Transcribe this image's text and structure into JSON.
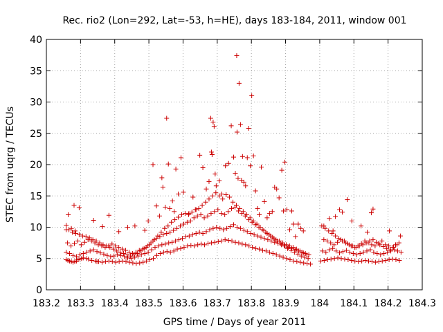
{
  "chart_data": {
    "type": "scatter",
    "title": "Rec. rio2 (Lon=292, Lat=-53, h=HE), days 183-184, 2011, window 001",
    "xlabel": "GPS time / Days of year 2011",
    "ylabel": "STEC from uqrg / TECUs",
    "xlim": [
      183.2,
      184.3
    ],
    "ylim": [
      0,
      40
    ],
    "xticks": [
      183.2,
      183.3,
      183.4,
      183.5,
      183.6,
      183.7,
      183.8,
      183.9,
      184.0,
      184.1,
      184.2,
      184.3
    ],
    "xtick_labels": [
      "183.2",
      "183.3",
      "183.4",
      "183.5",
      "183.6",
      "183.7",
      "183.8",
      "183.9",
      "184",
      "184.1",
      "184.2",
      "184.3"
    ],
    "yticks": [
      0,
      5,
      10,
      15,
      20,
      25,
      30,
      35,
      40
    ],
    "ytick_labels": [
      "0",
      "5",
      "10",
      "15",
      "20",
      "25",
      "30",
      "35",
      "40"
    ],
    "grid": true,
    "marker": "+",
    "color": "#cc0000",
    "series": [
      {
        "name": "STEC",
        "x": [
          183.258,
          183.263,
          183.268,
          183.273,
          183.278,
          183.283,
          183.288,
          183.293,
          183.298,
          183.303,
          183.308,
          183.318,
          183.323,
          183.333,
          183.343,
          183.348,
          183.353,
          183.363,
          183.373,
          183.383,
          183.393,
          183.403,
          183.413,
          183.423,
          183.433,
          183.443,
          183.453,
          183.463,
          183.473,
          183.483,
          183.493,
          183.503,
          183.513,
          183.523,
          183.533,
          183.543,
          183.553,
          183.563,
          183.573,
          183.583,
          183.593,
          183.603,
          183.613,
          183.623,
          183.633,
          183.643,
          183.653,
          183.663,
          183.673,
          183.683,
          183.693,
          183.703,
          183.713,
          183.723,
          183.733,
          183.743,
          183.753,
          183.763,
          183.773,
          183.783,
          183.793,
          183.803,
          183.813,
          183.823,
          183.833,
          183.843,
          183.853,
          183.863,
          183.873,
          183.883,
          183.893,
          183.903,
          183.913,
          183.923,
          183.933,
          183.943,
          183.953,
          183.963,
          183.973,
          184.003,
          184.013,
          184.023,
          184.033,
          184.043,
          184.053,
          184.063,
          184.073,
          184.083,
          184.093,
          184.103,
          184.113,
          184.123,
          184.133,
          184.143,
          184.153,
          184.163,
          184.173,
          184.183,
          184.193,
          184.203,
          184.213,
          184.223,
          184.233,
          183.258,
          183.268,
          183.278,
          183.288,
          183.298,
          183.308,
          183.318,
          183.328,
          183.338,
          183.348,
          183.358,
          183.368,
          183.378,
          183.388,
          183.398,
          183.408,
          183.418,
          183.428,
          183.438,
          183.448,
          183.458,
          183.468,
          183.478,
          183.488,
          183.498,
          183.508,
          183.518,
          183.528,
          183.538,
          183.548,
          183.558,
          183.568,
          183.578,
          183.588,
          183.598,
          183.608,
          183.618,
          183.628,
          183.638,
          183.648,
          183.658,
          183.668,
          183.678,
          183.688,
          183.698,
          183.708,
          183.718,
          183.728,
          183.738,
          183.748,
          183.758,
          183.768,
          183.778,
          183.788,
          183.798,
          183.808,
          183.818,
          183.828,
          183.838,
          183.848,
          183.858,
          183.868,
          183.878,
          183.888,
          183.898,
          183.908,
          183.918,
          183.928,
          183.938,
          183.948,
          183.958,
          183.968,
          184.008,
          184.018,
          184.028,
          184.038,
          184.048,
          184.058,
          184.068,
          184.078,
          184.088,
          184.098,
          184.108,
          184.118,
          184.128,
          184.138,
          184.148,
          184.158,
          184.168,
          184.178,
          184.188,
          184.198,
          184.208,
          184.218,
          184.228,
          184.238,
          183.262,
          183.272,
          183.282,
          183.292,
          183.302,
          183.312,
          183.322,
          183.332,
          183.342,
          183.352,
          183.362,
          183.372,
          183.382,
          183.392,
          183.402,
          183.412,
          183.422,
          183.432,
          183.442,
          183.452,
          183.462,
          183.472,
          183.482,
          183.492,
          183.502,
          183.512,
          183.522,
          183.532,
          183.542,
          183.552,
          183.562,
          183.572,
          183.582,
          183.592,
          183.602,
          183.612,
          183.622,
          183.632,
          183.642,
          183.652,
          183.662,
          183.672,
          183.682,
          183.692,
          183.702,
          183.712,
          183.722,
          183.732,
          183.742,
          183.752,
          183.762,
          183.772,
          183.782,
          183.792,
          183.802,
          183.812,
          183.822,
          183.832,
          183.842,
          183.852,
          183.862,
          183.872,
          183.882,
          183.892,
          183.902,
          183.912,
          183.922,
          183.932,
          183.942,
          183.952,
          183.962,
          184.012,
          184.022,
          184.032,
          184.042,
          184.052,
          184.062,
          184.072,
          184.082,
          184.092,
          184.102,
          184.112,
          184.122,
          184.132,
          184.142,
          184.152,
          184.162,
          184.172,
          184.182,
          184.192,
          184.202,
          184.212,
          184.222,
          184.232,
          183.258,
          183.266,
          183.276,
          183.286,
          183.296,
          183.306,
          183.316,
          183.326,
          183.336,
          183.346,
          183.356,
          183.366,
          183.376,
          183.386,
          183.396,
          183.406,
          183.416,
          183.426,
          183.436,
          183.446,
          183.456,
          183.466,
          183.476,
          183.486,
          183.496,
          183.506,
          183.516,
          183.526,
          183.536,
          183.546,
          183.556,
          183.566,
          183.576,
          183.586,
          183.596,
          183.606,
          183.616,
          183.626,
          183.636,
          183.646,
          183.656,
          183.666,
          183.676,
          183.686,
          183.696,
          183.706,
          183.716,
          183.726,
          183.736,
          183.746,
          183.756,
          183.766,
          183.776,
          183.786,
          183.796,
          183.806,
          183.816,
          183.826,
          183.836,
          183.846,
          183.856,
          183.866,
          183.876,
          183.886,
          183.896,
          183.906,
          183.916,
          183.926,
          183.936,
          183.946,
          183.956,
          183.966,
          184.006,
          184.016,
          184.026,
          184.036,
          184.046,
          184.056,
          184.066,
          184.076,
          184.086,
          184.096,
          184.106,
          184.116,
          184.126,
          184.136,
          184.146,
          184.156,
          184.166,
          184.176,
          184.186,
          184.196,
          184.206,
          184.216,
          184.226,
          184.236,
          183.258,
          183.264,
          183.273,
          183.281,
          183.284,
          183.296,
          183.338,
          183.364,
          183.383,
          183.412,
          183.438,
          183.459,
          183.488,
          183.498,
          183.512,
          183.522,
          183.531,
          183.538,
          183.541,
          183.548,
          183.552,
          183.557,
          183.561,
          183.569,
          183.574,
          183.579,
          183.586,
          183.594,
          183.601,
          183.617,
          183.629,
          183.638,
          183.649,
          183.658,
          183.668,
          183.676,
          183.681,
          183.683,
          183.685,
          183.688,
          183.691,
          183.694,
          183.697,
          183.706,
          183.713,
          183.724,
          183.733,
          183.741,
          183.748,
          183.753,
          183.757,
          183.758,
          183.761,
          183.764,
          183.768,
          183.771,
          183.774,
          183.778,
          183.783,
          183.788,
          183.792,
          183.797,
          183.801,
          183.806,
          183.812,
          183.818,
          183.823,
          183.829,
          183.838,
          183.846,
          183.853,
          183.861,
          183.868,
          183.874,
          183.881,
          183.889,
          183.894,
          183.898,
          183.904,
          183.912,
          183.918,
          183.923,
          183.929,
          183.937,
          183.944,
          183.952,
          184.012,
          184.028,
          184.039,
          184.046,
          184.058,
          184.066,
          184.081,
          184.094,
          184.121,
          184.139,
          184.151,
          184.156,
          184.204
        ],
        "y": [
          4.8,
          4.7,
          4.6,
          4.5,
          4.4,
          4.5,
          4.6,
          4.8,
          4.9,
          5.0,
          5.1,
          5.0,
          4.9,
          4.7,
          4.6,
          4.5,
          4.5,
          4.4,
          4.5,
          4.6,
          4.5,
          4.4,
          4.5,
          4.6,
          4.5,
          4.4,
          4.3,
          4.2,
          4.3,
          4.4,
          4.6,
          4.8,
          5.0,
          5.5,
          5.8,
          6.0,
          6.1,
          6.0,
          6.2,
          6.5,
          6.6,
          6.8,
          7.0,
          7.1,
          7.0,
          7.2,
          7.3,
          7.2,
          7.4,
          7.5,
          7.6,
          7.7,
          7.8,
          8.0,
          7.9,
          7.8,
          7.6,
          7.5,
          7.3,
          7.2,
          7.0,
          6.8,
          6.6,
          6.5,
          6.3,
          6.2,
          6.0,
          5.8,
          5.6,
          5.4,
          5.2,
          5.0,
          4.8,
          4.6,
          4.5,
          4.4,
          4.3,
          4.2,
          4.1,
          4.6,
          4.7,
          4.8,
          4.9,
          5.0,
          5.1,
          5.0,
          4.9,
          4.8,
          4.7,
          4.6,
          4.5,
          4.6,
          4.7,
          4.6,
          4.5,
          4.4,
          4.5,
          4.6,
          4.7,
          4.8,
          4.9,
          4.8,
          4.7,
          6.0,
          5.8,
          5.5,
          5.3,
          5.6,
          5.8,
          6.0,
          6.2,
          6.4,
          6.1,
          5.9,
          5.7,
          5.5,
          5.3,
          5.4,
          5.6,
          5.5,
          5.3,
          5.1,
          5.0,
          5.2,
          5.4,
          5.6,
          5.8,
          6.0,
          6.4,
          6.8,
          7.0,
          7.2,
          7.3,
          7.5,
          7.6,
          7.8,
          8.0,
          8.2,
          8.5,
          8.6,
          8.8,
          9.0,
          9.2,
          9.0,
          9.3,
          9.6,
          9.8,
          10.0,
          9.8,
          9.6,
          9.8,
          10.1,
          10.4,
          10.0,
          9.8,
          9.5,
          9.3,
          9.0,
          8.8,
          8.6,
          8.4,
          8.2,
          8.0,
          7.8,
          7.6,
          7.4,
          7.2,
          7.0,
          6.8,
          6.6,
          6.4,
          6.2,
          6.0,
          5.8,
          5.6,
          6.2,
          6.0,
          6.4,
          6.6,
          6.2,
          5.9,
          6.1,
          6.3,
          6.0,
          5.8,
          5.6,
          5.8,
          6.0,
          6.2,
          6.4,
          6.0,
          5.8,
          5.6,
          5.8,
          6.0,
          6.2,
          6.4,
          6.2,
          6.0,
          7.5,
          7.0,
          7.4,
          7.8,
          7.2,
          7.6,
          8.0,
          7.8,
          7.5,
          7.2,
          7.0,
          6.8,
          7.0,
          7.3,
          7.0,
          6.8,
          6.5,
          6.3,
          6.0,
          5.8,
          6.0,
          6.3,
          6.5,
          6.8,
          7.2,
          7.8,
          8.2,
          8.5,
          8.8,
          9.0,
          9.2,
          9.5,
          9.8,
          10.2,
          10.5,
          10.8,
          11.0,
          11.5,
          11.8,
          12.0,
          11.5,
          11.8,
          12.2,
          12.5,
          12.8,
          12.2,
          12.0,
          12.5,
          13.0,
          13.2,
          12.6,
          12.2,
          11.8,
          11.2,
          10.8,
          10.4,
          10.0,
          9.6,
          9.2,
          8.8,
          8.4,
          8.0,
          7.8,
          7.5,
          7.2,
          7.0,
          6.8,
          6.5,
          6.2,
          5.9,
          5.6,
          8.0,
          7.8,
          7.5,
          7.2,
          7.6,
          8.0,
          7.8,
          7.4,
          7.0,
          6.8,
          7.0,
          7.4,
          7.8,
          7.5,
          7.2,
          7.0,
          7.4,
          7.8,
          7.2,
          7.0,
          6.8,
          7.2,
          7.5,
          10.3,
          9.6,
          9.2,
          9.0,
          8.8,
          8.6,
          8.5,
          8.3,
          8.0,
          7.8,
          7.5,
          7.2,
          7.0,
          6.8,
          6.5,
          6.2,
          6.0,
          5.8,
          5.6,
          5.4,
          5.6,
          5.8,
          6.2,
          6.6,
          7.0,
          7.5,
          8.0,
          8.6,
          9.2,
          9.8,
          10.2,
          10.8,
          11.2,
          11.6,
          12.0,
          12.2,
          12.0,
          12.4,
          12.8,
          13.0,
          13.5,
          14.0,
          14.5,
          15.0,
          15.5,
          15.0,
          14.5,
          15.2,
          14.8,
          14.0,
          13.5,
          13.0,
          12.5,
          12.0,
          11.5,
          11.0,
          10.5,
          10.0,
          9.5,
          9.0,
          8.6,
          8.2,
          7.8,
          7.4,
          7.0,
          6.6,
          6.3,
          6.0,
          5.7,
          5.4,
          5.2,
          5.0,
          10.2,
          9.8,
          9.4,
          9.0,
          8.6,
          8.2,
          7.8,
          7.5,
          7.2,
          7.0,
          6.8,
          7.0,
          7.2,
          7.5,
          7.8,
          8.0,
          7.6,
          7.2,
          6.9,
          6.6,
          6.4,
          6.8,
          7.2,
          8.6,
          9.6,
          12.0,
          9.8,
          13.5,
          9.4,
          13.1,
          11.1,
          10.1,
          11.9,
          9.3,
          10.0,
          10.2,
          9.5,
          11.0,
          20.0,
          13.4,
          11.8,
          17.9,
          16.4,
          13.2,
          27.4,
          20.1,
          13.0,
          14.2,
          12.5,
          19.3,
          15.3,
          21.1,
          15.6,
          12.2,
          14.8,
          12.8,
          21.5,
          19.5,
          16.1,
          17.3,
          27.4,
          22.0,
          21.6,
          26.8,
          26.1,
          18.5,
          16.6,
          17.4,
          15.3,
          19.8,
          20.2,
          26.2,
          21.2,
          18.6,
          37.4,
          25.2,
          17.8,
          33.0,
          26.4,
          17.5,
          21.3,
          17.2,
          16.6,
          21.1,
          25.8,
          19.8,
          31.0,
          21.4,
          15.8,
          13.0,
          12.0,
          19.6,
          14.1,
          11.5,
          12.2,
          12.5,
          16.4,
          16.1,
          14.7,
          19.1,
          12.6,
          20.4,
          12.8,
          9.6,
          12.6,
          10.5,
          8.5,
          10.5,
          9.8,
          9.4,
          10.2,
          11.4,
          9.4,
          11.7,
          12.8,
          12.4,
          14.4,
          11.0,
          10.2,
          9.2,
          12.3,
          12.9,
          9.4
        ]
      }
    ]
  }
}
